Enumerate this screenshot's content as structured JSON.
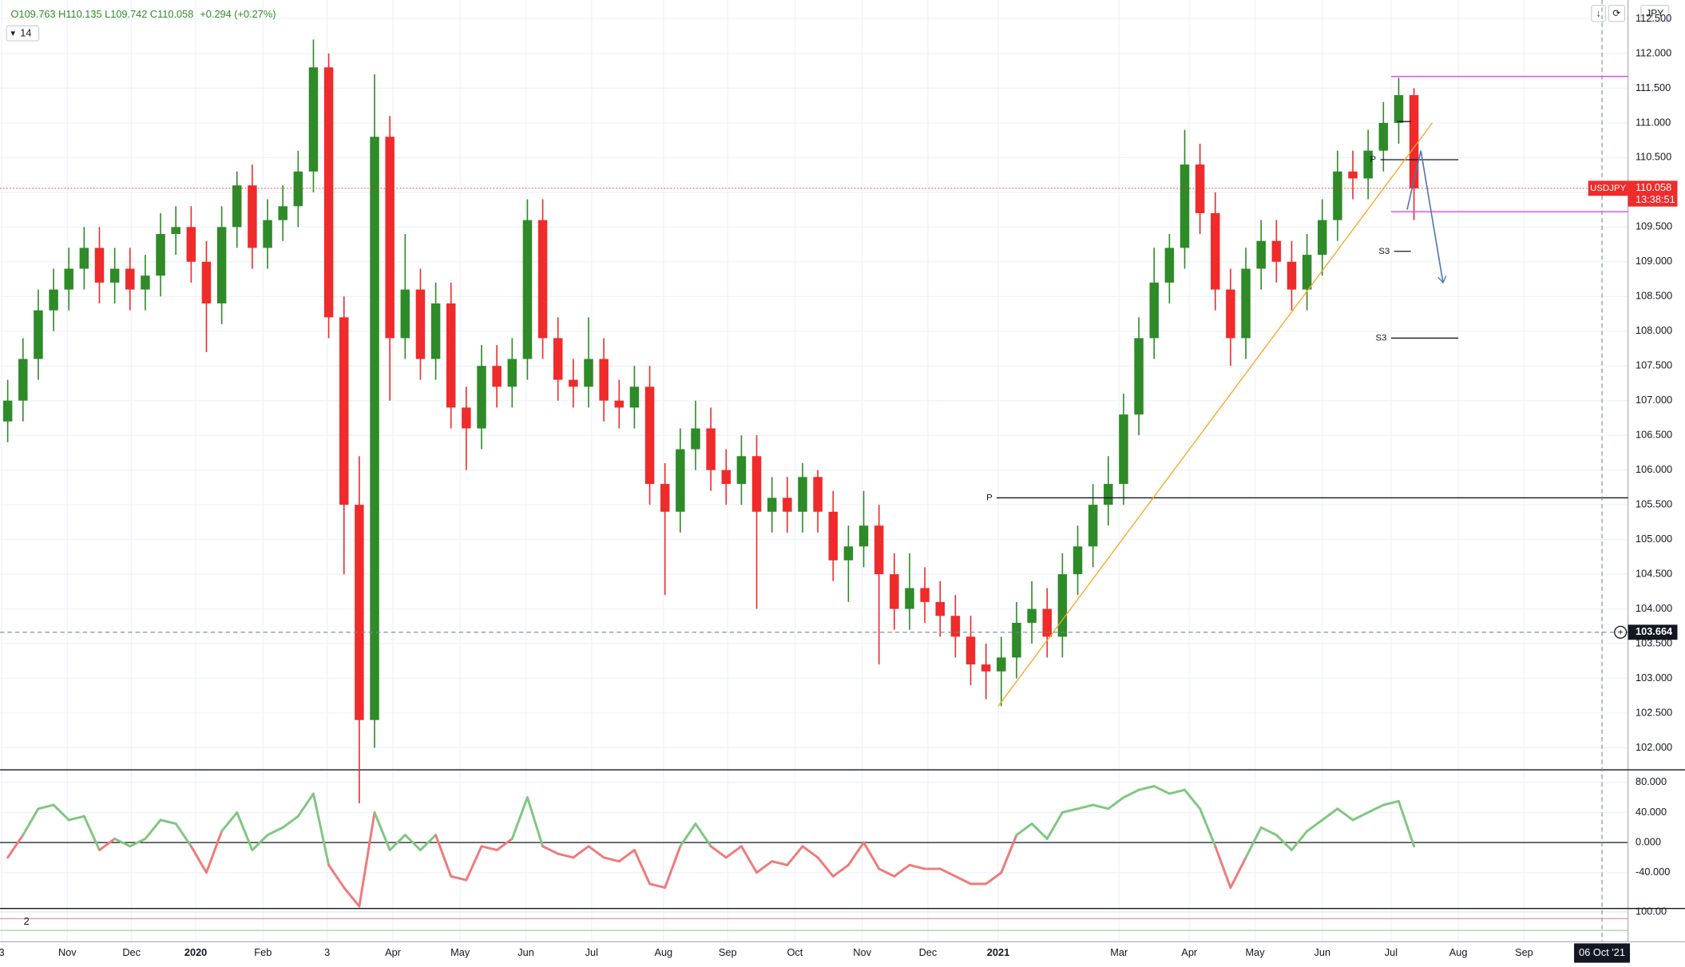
{
  "header": {
    "ohlc": "O109.763 H110.135 L109.742 C110.058",
    "change": "+0.294 (+0.27%)",
    "interval": "14",
    "currency": "JPY"
  },
  "chart_data": [
    {
      "type": "candlestick",
      "symbol": "USDJPY",
      "last_price": 110.058,
      "countdown": "13:38:51",
      "up_color": "#2e8b28",
      "down_color": "#ef2b2b",
      "open": [
        106.7,
        107.0,
        107.6,
        108.3,
        108.6,
        108.9,
        109.2,
        108.7,
        108.9,
        108.6,
        108.8,
        109.4,
        109.5,
        109.0,
        108.4,
        109.5,
        110.1,
        109.2,
        109.6,
        109.8,
        110.3,
        111.8,
        108.2,
        105.5,
        102.4,
        110.8,
        107.9,
        108.6,
        107.6,
        108.4,
        106.9,
        106.6,
        107.5,
        107.2,
        107.6,
        109.6,
        107.9,
        107.3,
        107.2,
        107.6,
        107.0,
        106.9,
        107.2,
        105.8,
        105.4,
        106.3,
        106.6,
        106.0,
        105.8,
        106.2,
        105.4,
        105.6,
        105.4,
        105.9,
        105.4,
        104.7,
        104.9,
        105.2,
        104.5,
        104.0,
        104.3,
        104.1,
        103.9,
        103.6,
        103.2,
        103.1,
        103.3,
        103.8,
        104.0,
        103.6,
        104.5,
        104.9,
        105.5,
        105.8,
        106.8,
        107.9,
        108.7,
        109.2,
        110.4,
        109.7,
        108.6,
        107.9,
        108.9,
        109.3,
        109.0,
        108.6,
        109.1,
        109.6,
        110.3,
        110.2,
        110.6,
        111.0,
        111.4
      ],
      "high": [
        107.3,
        107.9,
        108.6,
        108.9,
        109.2,
        109.5,
        109.5,
        109.2,
        109.2,
        109.1,
        109.7,
        109.8,
        109.8,
        109.3,
        109.8,
        110.3,
        110.4,
        109.9,
        110.1,
        110.6,
        112.2,
        112.0,
        108.5,
        106.2,
        111.7,
        111.1,
        109.4,
        108.9,
        108.7,
        108.7,
        107.2,
        107.8,
        107.8,
        107.9,
        109.9,
        109.9,
        108.2,
        107.6,
        108.2,
        107.9,
        107.3,
        107.5,
        107.5,
        106.1,
        106.6,
        107.0,
        106.9,
        106.3,
        106.5,
        106.5,
        105.9,
        105.9,
        106.1,
        106.0,
        105.7,
        105.2,
        105.7,
        105.5,
        104.8,
        104.8,
        104.6,
        104.4,
        104.2,
        103.9,
        103.5,
        103.6,
        104.1,
        104.4,
        104.3,
        104.8,
        105.2,
        105.8,
        106.2,
        107.1,
        108.2,
        109.2,
        109.4,
        110.9,
        110.7,
        110.0,
        108.9,
        109.2,
        109.6,
        109.6,
        109.3,
        109.4,
        109.9,
        110.6,
        110.6,
        110.9,
        111.3,
        111.65,
        111.5
      ],
      "low": [
        106.4,
        106.7,
        107.3,
        108.0,
        108.3,
        108.6,
        108.4,
        108.4,
        108.3,
        108.3,
        108.5,
        109.1,
        108.7,
        107.7,
        108.1,
        109.2,
        108.9,
        108.9,
        109.3,
        109.5,
        110.0,
        107.9,
        104.5,
        101.2,
        102.0,
        107.0,
        107.6,
        107.3,
        107.3,
        106.6,
        106.0,
        106.3,
        106.9,
        106.9,
        107.3,
        107.6,
        107.0,
        106.9,
        106.9,
        106.7,
        106.6,
        106.6,
        105.5,
        104.2,
        105.1,
        106.0,
        105.7,
        105.5,
        105.5,
        104.0,
        105.1,
        105.1,
        105.1,
        105.1,
        104.4,
        104.1,
        104.6,
        103.2,
        103.7,
        103.7,
        103.8,
        103.6,
        103.3,
        102.9,
        102.7,
        102.6,
        103.0,
        103.5,
        103.3,
        103.3,
        104.2,
        104.6,
        105.2,
        105.5,
        106.5,
        107.6,
        108.4,
        108.9,
        109.4,
        108.3,
        107.5,
        107.6,
        108.6,
        108.7,
        108.3,
        108.3,
        108.8,
        109.3,
        109.9,
        109.9,
        110.3,
        110.7,
        109.6
      ],
      "close": [
        107.0,
        107.6,
        108.3,
        108.6,
        108.9,
        109.2,
        108.7,
        108.9,
        108.6,
        108.8,
        109.4,
        109.5,
        109.0,
        108.4,
        109.5,
        110.1,
        109.2,
        109.6,
        109.8,
        110.3,
        111.8,
        108.2,
        105.5,
        102.4,
        110.8,
        107.9,
        108.6,
        107.6,
        108.4,
        106.9,
        106.6,
        107.5,
        107.2,
        107.6,
        109.6,
        107.9,
        107.3,
        107.2,
        107.6,
        107.0,
        106.9,
        107.2,
        105.8,
        105.4,
        106.3,
        106.6,
        106.0,
        105.8,
        106.2,
        105.4,
        105.6,
        105.4,
        105.9,
        105.4,
        104.7,
        104.9,
        105.2,
        104.5,
        104.0,
        104.3,
        104.1,
        103.9,
        103.6,
        103.2,
        103.1,
        103.3,
        103.8,
        104.0,
        103.6,
        104.5,
        104.9,
        105.5,
        105.8,
        106.8,
        107.9,
        108.7,
        109.2,
        110.4,
        109.7,
        108.6,
        107.9,
        108.9,
        109.3,
        109.0,
        108.6,
        109.1,
        109.6,
        110.3,
        110.2,
        110.6,
        111.0,
        111.4,
        110.058
      ],
      "xlim": [
        0,
        106.5
      ],
      "ylim": [
        101.69,
        112.77
      ],
      "yticks": [
        {
          "value": 102,
          "label": "102.000"
        },
        {
          "value": 102.5,
          "label": "102.500"
        },
        {
          "value": 103,
          "label": "103.000"
        },
        {
          "value": 103.5,
          "label": "103.500"
        },
        {
          "value": 104,
          "label": "104.000"
        },
        {
          "value": 104.5,
          "label": "104.500"
        },
        {
          "value": 105,
          "label": "105.000"
        },
        {
          "value": 105.5,
          "label": "105.500"
        },
        {
          "value": 106,
          "label": "106.000"
        },
        {
          "value": 106.5,
          "label": "106.500"
        },
        {
          "value": 107,
          "label": "107.000"
        },
        {
          "value": 107.5,
          "label": "107.500"
        },
        {
          "value": 108,
          "label": "108.000"
        },
        {
          "value": 108.5,
          "label": "108.500"
        },
        {
          "value": 109,
          "label": "109.000"
        },
        {
          "value": 109.5,
          "label": "109.500"
        },
        {
          "value": 110,
          "label": "110.000"
        },
        {
          "value": 110.5,
          "label": "110.500"
        },
        {
          "value": 111,
          "label": "111.000"
        },
        {
          "value": 111.5,
          "label": "111.500"
        },
        {
          "value": 112,
          "label": "112.000"
        },
        {
          "value": 112.5,
          "label": "112.500"
        }
      ],
      "xticks": [
        {
          "value": 0.1,
          "label": "3"
        },
        {
          "value": 4.4,
          "label": "Nov"
        },
        {
          "value": 8.6,
          "label": "Dec"
        },
        {
          "value": 12.8,
          "label": "2020"
        },
        {
          "value": 17.2,
          "label": "Feb"
        },
        {
          "value": 21.4,
          "label": "3"
        },
        {
          "value": 25.7,
          "label": "Apr"
        },
        {
          "value": 30.1,
          "label": "May"
        },
        {
          "value": 34.4,
          "label": "Jun"
        },
        {
          "value": 38.7,
          "label": "Jul"
        },
        {
          "value": 43.4,
          "label": "Aug"
        },
        {
          "value": 47.6,
          "label": "Sep"
        },
        {
          "value": 52.0,
          "label": "Oct"
        },
        {
          "value": 56.4,
          "label": "Nov"
        },
        {
          "value": 60.7,
          "label": "Dec"
        },
        {
          "value": 65.3,
          "label": "2021"
        },
        {
          "value": 73.2,
          "label": "Mar"
        },
        {
          "value": 77.8,
          "label": "Apr"
        },
        {
          "value": 82.1,
          "label": "May"
        },
        {
          "value": 86.5,
          "label": "Jun"
        },
        {
          "value": 91.0,
          "label": "Jul"
        },
        {
          "value": 95.4,
          "label": "Aug"
        },
        {
          "value": 99.7,
          "label": "Sep"
        }
      ],
      "grid": true,
      "crosshair": 103.664,
      "crosshair_x": 104.8,
      "crosshair_date": "06 Oct '21",
      "levels": [
        {
          "label": "P",
          "value": 105.6,
          "x": [
            65.2,
            106.5
          ],
          "color": "#131722"
        },
        {
          "label": "P",
          "value": 110.47,
          "x": [
            90.3,
            95.4
          ],
          "color": "#131722"
        },
        {
          "value": 111.02,
          "x": [
            91.4,
            92.3
          ],
          "color": "#131722"
        },
        {
          "label": "S3",
          "value": 109.15,
          "x": [
            91.2,
            92.3
          ],
          "color": "#131722"
        },
        {
          "label": "S3",
          "value": 107.9,
          "x": [
            91.0,
            95.4
          ],
          "color": "#131722"
        },
        {
          "value": 111.67,
          "x": [
            91.0,
            106.5
          ],
          "color": "#e040fb"
        },
        {
          "value": 109.72,
          "x": [
            91.0,
            106.5
          ],
          "color": "#e040fb"
        }
      ],
      "trendline": {
        "x": [
          65.3,
          93.7
        ],
        "y": [
          102.6,
          111.0
        ],
        "color": "#f5a623"
      },
      "arrow": {
        "x": [
          92.05,
          92.95,
          94.4
        ],
        "y": [
          109.75,
          110.6,
          108.7
        ],
        "color": "#4a78b0"
      }
    },
    {
      "type": "line",
      "pos_color": "#7fc77f",
      "neg_color": "#f07a7a",
      "values": [
        -20,
        10,
        45,
        50,
        30,
        35,
        -10,
        5,
        -5,
        5,
        30,
        25,
        -5,
        -40,
        15,
        40,
        -10,
        10,
        20,
        35,
        65,
        -30,
        -60,
        -85,
        40,
        -10,
        10,
        -10,
        10,
        -45,
        -50,
        -5,
        -10,
        5,
        60,
        -5,
        -15,
        -20,
        -5,
        -20,
        -25,
        -10,
        -55,
        -60,
        -5,
        25,
        -5,
        -20,
        -5,
        -40,
        -25,
        -30,
        -5,
        -20,
        -45,
        -30,
        0,
        -35,
        -45,
        -30,
        -35,
        -35,
        -45,
        -55,
        -55,
        -40,
        10,
        25,
        5,
        40,
        45,
        50,
        45,
        60,
        70,
        75,
        65,
        70,
        45,
        -5,
        -60,
        -20,
        20,
        10,
        -10,
        15,
        30,
        45,
        30,
        40,
        50,
        55,
        -5
      ],
      "ylim": [
        -87,
        96
      ],
      "yticks": [
        {
          "value": -40,
          "label": "-40.000"
        },
        {
          "value": 0,
          "label": "0.000"
        },
        {
          "value": 40,
          "label": "40.000"
        },
        {
          "value": 80,
          "label": "80.000"
        }
      ]
    },
    {
      "type": "panel",
      "label": "2",
      "ylim": [
        0,
        110
      ],
      "yticks": [
        {
          "value": 100,
          "label": "100.00"
        }
      ]
    }
  ]
}
